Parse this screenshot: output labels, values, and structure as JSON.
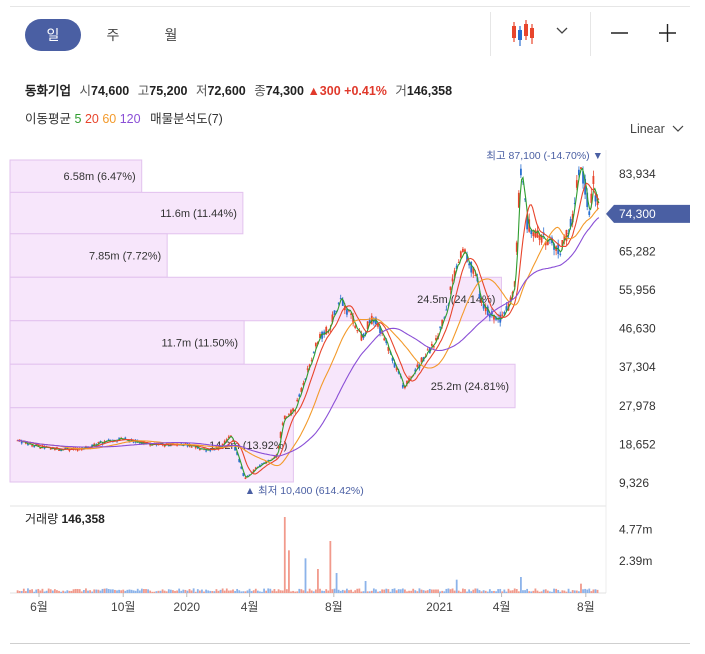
{
  "period_tabs": [
    {
      "label": "일",
      "active": true
    },
    {
      "label": "주",
      "active": false
    },
    {
      "label": "월",
      "active": false
    }
  ],
  "stock": {
    "name": "동화기업",
    "open_label": "시",
    "open": "74,600",
    "high_label": "고",
    "high": "75,200",
    "low_label": "저",
    "low": "72,600",
    "close_label": "종",
    "close": "74,300",
    "change": "▲300",
    "change_pct": "+0.41%",
    "volume_label": "거",
    "volume": "146,358"
  },
  "indicators": {
    "ma_label": "이동평균",
    "ma": [
      {
        "period": "5",
        "color": "#2e9d2e"
      },
      {
        "period": "20",
        "color": "#e8452c"
      },
      {
        "period": "60",
        "color": "#f39a2b"
      },
      {
        "period": "120",
        "color": "#8a4fd6"
      }
    ],
    "vp_label": "매물분석도(7)"
  },
  "scale_mode": "Linear",
  "colors": {
    "up": "#e8452c",
    "down": "#2a6fd0",
    "current_badge": "#4a5fa3",
    "volume_profile": "#f6e3fb"
  },
  "chart_data": {
    "type": "candlestick",
    "ylim": [
      6500,
      95000
    ],
    "y_ticks": [
      "83,934",
      "74,300",
      "65,282",
      "55,956",
      "46,630",
      "37,304",
      "27,978",
      "18,652",
      "9,326"
    ],
    "x_ticks": [
      "6월",
      "10월",
      "2020",
      "4월",
      "8월",
      "2021",
      "4월",
      "8월"
    ],
    "current_price": "74,300",
    "high_annotation": {
      "label": "최고",
      "value": "87,100",
      "pct": "(-14.70%)"
    },
    "low_annotation": {
      "label": "최저",
      "value": "10,400",
      "pct": "(614.42%)"
    },
    "volume_profile": [
      {
        "low": 79500,
        "high": 89500,
        "label": "6.58m (6.47%)",
        "pct": 6.47
      },
      {
        "low": 69500,
        "high": 79500,
        "label": "11.6m (11.44%)",
        "pct": 11.44
      },
      {
        "low": 59000,
        "high": 69500,
        "label": "7.85m (7.72%)",
        "pct": 7.72
      },
      {
        "low": 48500,
        "high": 59000,
        "label": "24.5m (24.14%)",
        "pct": 24.14
      },
      {
        "low": 38000,
        "high": 48500,
        "label": "11.7m (11.50%)",
        "pct": 11.5
      },
      {
        "low": 27500,
        "high": 38000,
        "label": "25.2m (24.81%)",
        "pct": 24.81
      },
      {
        "low": 8500,
        "high": 27500,
        "label": "14.2m (13.92%)",
        "pct": 13.92
      }
    ],
    "price_path": [
      {
        "d": "2019-05-01",
        "p": 19500
      },
      {
        "d": "2019-06-01",
        "p": 18000
      },
      {
        "d": "2019-07-01",
        "p": 17500
      },
      {
        "d": "2019-08-01",
        "p": 17500
      },
      {
        "d": "2019-09-01",
        "p": 19200
      },
      {
        "d": "2019-10-01",
        "p": 20000
      },
      {
        "d": "2019-11-01",
        "p": 18800
      },
      {
        "d": "2019-12-01",
        "p": 18500
      },
      {
        "d": "2020-01-01",
        "p": 18500
      },
      {
        "d": "2020-02-01",
        "p": 17300
      },
      {
        "d": "2020-02-20",
        "p": 18000
      },
      {
        "d": "2020-03-05",
        "p": 21000
      },
      {
        "d": "2020-03-20",
        "p": 12500
      },
      {
        "d": "2020-03-25",
        "p": 10400
      },
      {
        "d": "2020-04-15",
        "p": 13500
      },
      {
        "d": "2020-05-10",
        "p": 16000
      },
      {
        "d": "2020-05-20",
        "p": 25000
      },
      {
        "d": "2020-06-05",
        "p": 27000
      },
      {
        "d": "2020-06-25",
        "p": 37000
      },
      {
        "d": "2020-07-10",
        "p": 44000
      },
      {
        "d": "2020-07-25",
        "p": 47000
      },
      {
        "d": "2020-08-10",
        "p": 53500
      },
      {
        "d": "2020-08-25",
        "p": 50000
      },
      {
        "d": "2020-09-10",
        "p": 44500
      },
      {
        "d": "2020-09-25",
        "p": 49000
      },
      {
        "d": "2020-10-05",
        "p": 47500
      },
      {
        "d": "2020-10-25",
        "p": 39000
      },
      {
        "d": "2020-11-10",
        "p": 32500
      },
      {
        "d": "2020-12-01",
        "p": 37500
      },
      {
        "d": "2020-12-25",
        "p": 43000
      },
      {
        "d": "2021-01-10",
        "p": 50000
      },
      {
        "d": "2021-01-25",
        "p": 62000
      },
      {
        "d": "2021-02-05",
        "p": 65000
      },
      {
        "d": "2021-02-20",
        "p": 60000
      },
      {
        "d": "2021-03-05",
        "p": 52000
      },
      {
        "d": "2021-03-25",
        "p": 48000
      },
      {
        "d": "2021-04-10",
        "p": 52000
      },
      {
        "d": "2021-04-20",
        "p": 58000
      },
      {
        "d": "2021-04-28",
        "p": 86000
      },
      {
        "d": "2021-05-08",
        "p": 72000
      },
      {
        "d": "2021-05-20",
        "p": 70000
      },
      {
        "d": "2021-06-05",
        "p": 68000
      },
      {
        "d": "2021-06-25",
        "p": 66000
      },
      {
        "d": "2021-07-10",
        "p": 72000
      },
      {
        "d": "2021-07-25",
        "p": 87100
      },
      {
        "d": "2021-08-05",
        "p": 74000
      },
      {
        "d": "2021-08-12",
        "p": 82000
      },
      {
        "d": "2021-08-20",
        "p": 74300
      }
    ],
    "volume": {
      "label": "거래량",
      "value": "146,358",
      "y_ticks": [
        "4.77m",
        "2.39m"
      ],
      "ylim": [
        0,
        6000000
      ],
      "spikes": [
        {
          "d": "2020-05-21",
          "v": 5700000
        },
        {
          "d": "2020-05-28",
          "v": 3200000
        },
        {
          "d": "2020-06-22",
          "v": 2600000
        },
        {
          "d": "2020-07-09",
          "v": 1800000
        },
        {
          "d": "2020-07-28",
          "v": 3900000
        },
        {
          "d": "2020-08-06",
          "v": 1500000
        },
        {
          "d": "2020-09-15",
          "v": 900000
        },
        {
          "d": "2021-01-26",
          "v": 1000000
        },
        {
          "d": "2021-04-28",
          "v": 1200000
        },
        {
          "d": "2021-07-26",
          "v": 700000
        }
      ]
    }
  }
}
